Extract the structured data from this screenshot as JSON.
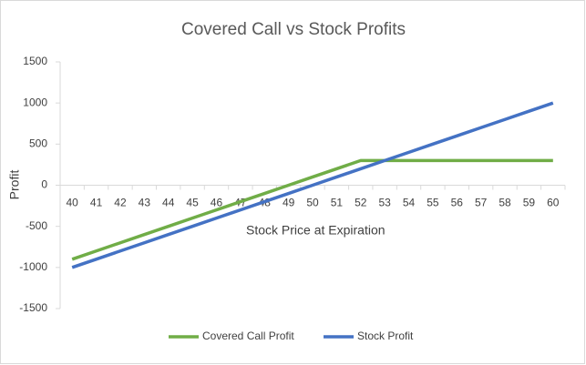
{
  "chart_data": {
    "type": "line",
    "title": "Covered Call vs Stock Profits",
    "x_label": "Stock Price at Expiration",
    "y_label": "Profit",
    "categories": [
      "40",
      "41",
      "42",
      "43",
      "44",
      "45",
      "46",
      "47",
      "48",
      "49",
      "50",
      "51",
      "52",
      "53",
      "54",
      "55",
      "56",
      "57",
      "58",
      "59",
      "60"
    ],
    "series": [
      {
        "name": "Covered Call Profit",
        "color": "#70ad47",
        "values": [
          -900,
          -800,
          -700,
          -600,
          -500,
          -400,
          -300,
          -200,
          -100,
          0,
          100,
          200,
          300,
          300,
          300,
          300,
          300,
          300,
          300,
          300,
          300
        ]
      },
      {
        "name": "Stock Profit",
        "color": "#4472c4",
        "values": [
          -1000,
          -900,
          -800,
          -700,
          -600,
          -500,
          -400,
          -300,
          -200,
          -100,
          0,
          100,
          200,
          300,
          400,
          500,
          600,
          700,
          800,
          900,
          1000
        ]
      }
    ],
    "ylim": [
      -1500,
      1500
    ],
    "yticks": [
      -1500,
      -1000,
      -500,
      0,
      500,
      1000,
      1500
    ],
    "grid": false,
    "legend": "bottom"
  }
}
